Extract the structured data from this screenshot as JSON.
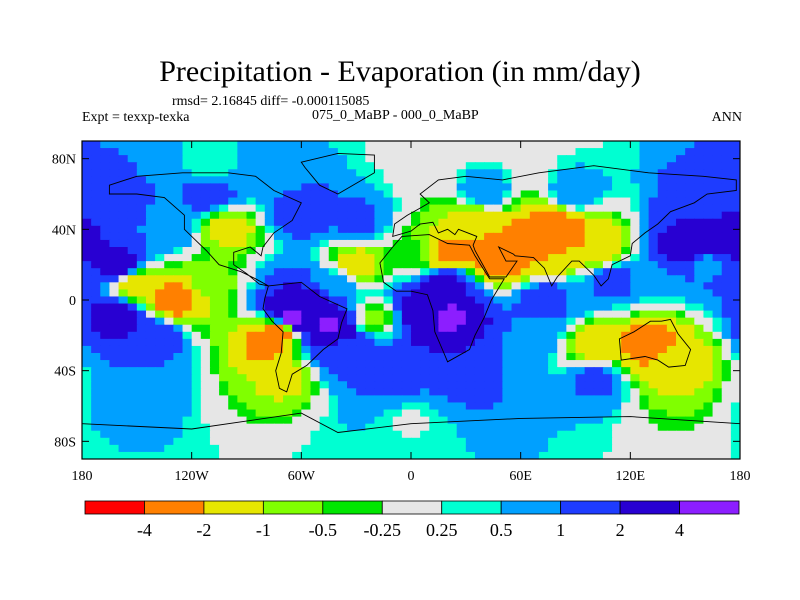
{
  "header": {
    "title": "Precipitation - Evaporation (in mm/day)",
    "stats": "rmsd= 2.16845 diff= -0.000115085",
    "expt": "Expt = texxp-texka",
    "case": "075_0_MaBP - 000_0_MaBP",
    "season": "ANN"
  },
  "chart_data": {
    "type": "heatmap",
    "title": "Precipitation - Evaporation (in mm/day)",
    "xlabel": "",
    "ylabel": "",
    "xlim": [
      -180,
      180
    ],
    "ylim": [
      -90,
      90
    ],
    "x_ticks": [
      {
        "value": -180,
        "label": "180"
      },
      {
        "value": -120,
        "label": "120W"
      },
      {
        "value": -60,
        "label": "60W"
      },
      {
        "value": 0,
        "label": "0"
      },
      {
        "value": 60,
        "label": "60E"
      },
      {
        "value": 120,
        "label": "120E"
      },
      {
        "value": 180,
        "label": "180"
      }
    ],
    "y_ticks": [
      {
        "value": 80,
        "label": "80N"
      },
      {
        "value": 40,
        "label": "40N"
      },
      {
        "value": 0,
        "label": "0"
      },
      {
        "value": -40,
        "label": "40S"
      },
      {
        "value": -80,
        "label": "80S"
      }
    ],
    "colorbar": {
      "levels": [
        -4,
        -2,
        -1,
        -0.5,
        -0.25,
        0.25,
        0.5,
        1,
        2,
        4
      ],
      "labels": [
        "-4",
        "-2",
        "-1",
        "-0.5",
        "-0.25",
        "0.25",
        "0.5",
        "1",
        "2",
        "4"
      ],
      "colors": [
        "#ff0000",
        "#ff8000",
        "#e6e600",
        "#80ff00",
        "#00e600",
        "#e6e6e6",
        "#00ffd2",
        "#00a0ff",
        "#1e3cff",
        "#2800d2",
        "#8c1eff"
      ]
    },
    "field_features": [
      {
        "lon": -130,
        "lat": 0,
        "value": -3
      },
      {
        "lon": -150,
        "lat": 8,
        "value": -1.5
      },
      {
        "lon": -110,
        "lat": 10,
        "value": -0.7
      },
      {
        "lon": -160,
        "lat": -10,
        "value": 3
      },
      {
        "lon": -140,
        "lat": -20,
        "value": 1.5
      },
      {
        "lon": -160,
        "lat": 20,
        "value": 2.5
      },
      {
        "lon": -160,
        "lat": 55,
        "value": 1.2
      },
      {
        "lon": -130,
        "lat": 40,
        "value": 0.8
      },
      {
        "lon": -100,
        "lat": 40,
        "value": -1.5
      },
      {
        "lon": -110,
        "lat": 60,
        "value": 1.5
      },
      {
        "lon": -110,
        "lat": 75,
        "value": 0.3
      },
      {
        "lon": -80,
        "lat": 70,
        "value": 0.6
      },
      {
        "lon": -60,
        "lat": 50,
        "value": 1.5
      },
      {
        "lon": -30,
        "lat": 45,
        "value": 1.2
      },
      {
        "lon": -30,
        "lat": 20,
        "value": -1.5
      },
      {
        "lon": -40,
        "lat": 10,
        "value": 0.7
      },
      {
        "lon": -60,
        "lat": -5,
        "value": 3.5
      },
      {
        "lon": -65,
        "lat": -10,
        "value": 4.5
      },
      {
        "lon": -45,
        "lat": -15,
        "value": 4.2
      },
      {
        "lon": -72,
        "lat": -18,
        "value": -2.5
      },
      {
        "lon": -80,
        "lat": -25,
        "value": -2.5
      },
      {
        "lon": -70,
        "lat": -45,
        "value": -1.2
      },
      {
        "lon": -35,
        "lat": -30,
        "value": 1.5
      },
      {
        "lon": -20,
        "lat": -10,
        "value": -0.6
      },
      {
        "lon": 10,
        "lat": -5,
        "value": 3.5
      },
      {
        "lon": 20,
        "lat": -10,
        "value": 4.5
      },
      {
        "lon": 20,
        "lat": 10,
        "value": 2.5
      },
      {
        "lon": 0,
        "lat": 25,
        "value": -0.4
      },
      {
        "lon": 20,
        "lat": 25,
        "value": -2.5
      },
      {
        "lon": 45,
        "lat": 25,
        "value": -3.5
      },
      {
        "lon": 35,
        "lat": 45,
        "value": -1.5
      },
      {
        "lon": 60,
        "lat": 30,
        "value": -3
      },
      {
        "lon": 80,
        "lat": 25,
        "value": -2
      },
      {
        "lon": 80,
        "lat": 40,
        "value": -3.5
      },
      {
        "lon": 100,
        "lat": 30,
        "value": -2
      },
      {
        "lon": 40,
        "lat": 60,
        "value": 1
      },
      {
        "lon": 90,
        "lat": 60,
        "value": 1
      },
      {
        "lon": 110,
        "lat": 10,
        "value": 1.5
      },
      {
        "lon": 90,
        "lat": 5,
        "value": 0.7
      },
      {
        "lon": 75,
        "lat": 0,
        "value": 2
      },
      {
        "lon": 130,
        "lat": 10,
        "value": 0.5
      },
      {
        "lon": 150,
        "lat": 30,
        "value": 3
      },
      {
        "lon": 170,
        "lat": 35,
        "value": 3.5
      },
      {
        "lon": 160,
        "lat": 20,
        "value": 0.8
      },
      {
        "lon": 160,
        "lat": 55,
        "value": 1.5
      },
      {
        "lon": 130,
        "lat": -25,
        "value": -3
      },
      {
        "lon": 145,
        "lat": -35,
        "value": -1.5
      },
      {
        "lon": 100,
        "lat": -25,
        "value": -1.5
      },
      {
        "lon": 70,
        "lat": -20,
        "value": 0.8
      },
      {
        "lon": 30,
        "lat": -45,
        "value": 1.2
      },
      {
        "lon": -10,
        "lat": -45,
        "value": 1.2
      },
      {
        "lon": 100,
        "lat": -45,
        "value": 1.2
      },
      {
        "lon": -150,
        "lat": -50,
        "value": 1
      },
      {
        "lon": 0,
        "lat": -70,
        "value": 0.2
      },
      {
        "lon": 0,
        "lat": -86,
        "value": 0.4
      },
      {
        "lon": 0,
        "lat": 84,
        "value": 0.1
      }
    ]
  }
}
